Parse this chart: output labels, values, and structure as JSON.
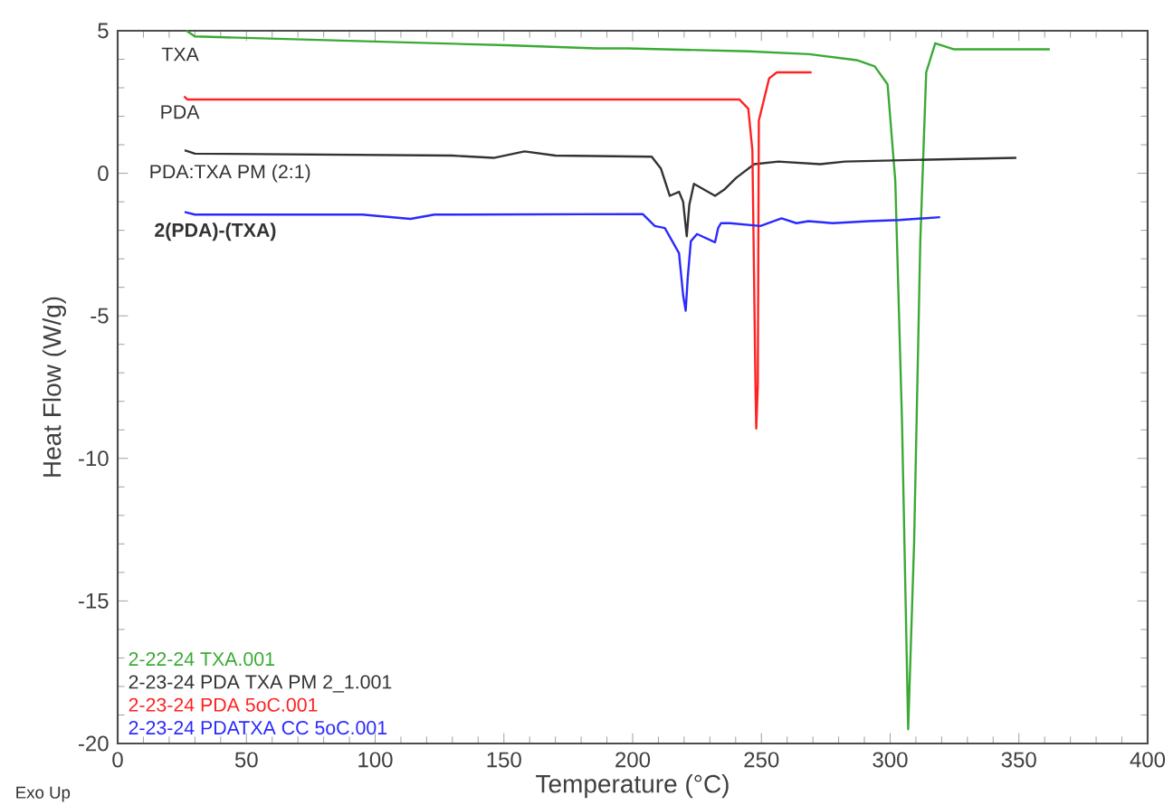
{
  "chart_data": {
    "type": "line",
    "xlabel": "Temperature (°C)",
    "ylabel": "Heat Flow (W/g)",
    "xlim": [
      0,
      400
    ],
    "xticks": [
      0,
      50,
      100,
      150,
      200,
      250,
      300,
      350,
      400
    ],
    "ylim": [
      -20,
      5
    ],
    "yticks": [
      -20,
      -15,
      -10,
      -5,
      0,
      5
    ],
    "legend": "bottom left",
    "grid": false,
    "marker": "none",
    "line_style": "solid",
    "series": [
      {
        "name": "2-22-24 TXA.001",
        "color": "#3aaa35",
        "x": [
          26.7,
          30,
          151,
          186,
          198,
          245,
          268.5,
          287,
          294,
          299,
          302,
          304.6,
          307,
          309.3,
          311.7,
          314,
          317.5,
          324.6,
          362
        ],
        "values": [
          5.0,
          4.8,
          4.49,
          4.38,
          4.38,
          4.28,
          4.18,
          3.97,
          3.75,
          3.12,
          -0.27,
          -8.7,
          -19.5,
          -12.96,
          -2.4,
          3.54,
          4.56,
          4.35,
          4.35
        ]
      },
      {
        "name": "2-23-24 PDA TXA PM 2_1.001",
        "color": "#333333",
        "x": [
          26,
          30,
          130,
          146,
          158,
          170,
          207.4,
          211,
          214.4,
          218,
          219.6,
          221,
          222,
          223.8,
          232,
          235.5,
          240.2,
          247.2,
          256.6,
          272.8,
          282.4,
          315,
          349
        ],
        "values": [
          0.81,
          0.69,
          0.62,
          0.54,
          0.77,
          0.62,
          0.58,
          0.16,
          -0.79,
          -0.65,
          -1.0,
          -2.21,
          -1.11,
          -0.37,
          -0.79,
          -0.58,
          -0.16,
          0.32,
          0.41,
          0.32,
          0.41,
          0.48,
          0.54
        ]
      },
      {
        "name": "2-23-24 PDA 5oC.001",
        "color": "#ff2222",
        "x": [
          25.8,
          27,
          241.4,
          244.9,
          246.5,
          247.7,
          248,
          248.6,
          249,
          250.7,
          253,
          256,
          269.5
        ],
        "values": [
          2.7,
          2.59,
          2.59,
          2.27,
          0.8,
          -7.45,
          -8.95,
          -7.45,
          1.85,
          2.48,
          3.33,
          3.54,
          3.54
        ]
      },
      {
        "name": "2-23-24 PDATXA CC 5oC.001",
        "color": "#2a2aff",
        "x": [
          26,
          30,
          95,
          113.7,
          123,
          203.9,
          208.6,
          212.5,
          218,
          219.6,
          220.6,
          221.4,
          222.6,
          225,
          232,
          233.2,
          234.3,
          237.8,
          249.6,
          257.8,
          263.6,
          268.3,
          277.7,
          291.7,
          303.5,
          319.4
        ],
        "values": [
          -1.36,
          -1.45,
          -1.45,
          -1.6,
          -1.45,
          -1.43,
          -1.85,
          -1.92,
          -2.8,
          -4.28,
          -4.82,
          -3.65,
          -2.38,
          -2.13,
          -2.42,
          -1.92,
          -1.75,
          -1.75,
          -1.85,
          -1.58,
          -1.75,
          -1.68,
          -1.75,
          -1.68,
          -1.64,
          -1.54
        ]
      }
    ],
    "annotations": [
      "TXA",
      "PDA",
      "PDA:TXA PM (2:1)",
      "**2(PDA)-(TXA)**",
      "Exo Up"
    ]
  }
}
